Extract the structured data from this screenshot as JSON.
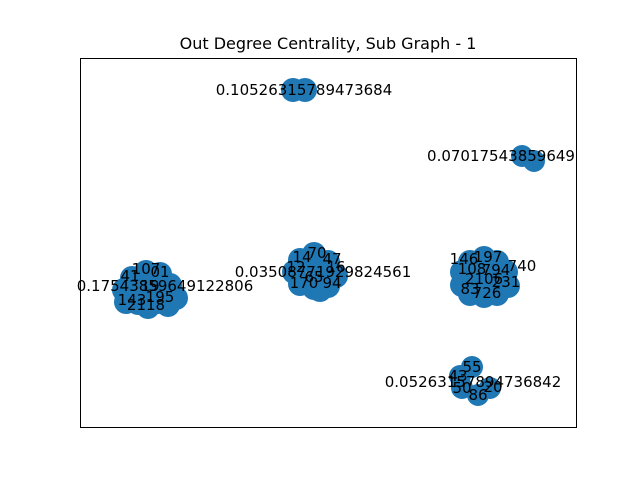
{
  "title": "Out Degree Centrality, Sub Graph - 1",
  "node_color": "#1f77b4",
  "frame_color": "#000000",
  "labels": {
    "top": "0.10526315789473684",
    "right_top": "0.07017543859649",
    "middle": "0.03508771929824561",
    "left": "0.17543859649122806",
    "bottom_right": "0.05263157894736842"
  },
  "node_ids": [
    "1",
    "4",
    "7",
    "10",
    "11",
    "14",
    "17",
    "20",
    "21",
    "24",
    "26",
    "40",
    "41",
    "43",
    "47",
    "50",
    "55",
    "59",
    "70",
    "86",
    "94",
    "95",
    "97",
    "117",
    "140",
    "147",
    "195",
    "217"
  ]
}
